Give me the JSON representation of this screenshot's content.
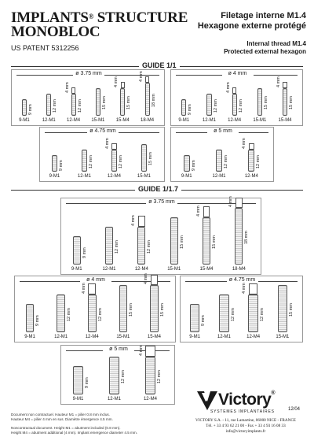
{
  "header": {
    "title_line1": "IMPLANTS",
    "trademark": "®",
    "title_line1b": " STRUCTURE",
    "title_line2": "MONOBLOC",
    "patent": "US PATENT 5312256",
    "fr_line1": "Filetage interne M1.4",
    "fr_line2": "Hexagone externe protégé",
    "en_line1": "Internal thread M1.4",
    "en_line2": "Protected external hexagon"
  },
  "guides": {
    "g1": "GUIDE 1/1",
    "g2": "GUIDE 1/1.7"
  },
  "footnotes": {
    "fr1": "Document non contractuel. Hauteur M1 = pilier 0.8 mm inclus.",
    "fr2": "Hauteur M4 = pilier 4 mm en sus. Diamètre émergence 4.5 mm.",
    "en1": "Noncontractual document. Height M1 = abutment included (0.8 mm).",
    "en2": "Height M4 = abutment additional (4 mm). Implant emergence diameter 4.5 mm."
  },
  "brand": {
    "name": "Victory",
    "reg": "®",
    "tagline": "SYSTEMES IMPLANTAIRES",
    "code": "12/04",
    "address": "VICTORY S.A. - 11, rue Lamartine, 06000 NICE - FRANCE",
    "phone": "Tél. + 33 4 93 62 21 00 - Fax + 33 4 93 16 08 33",
    "email": "info@victoryimplants.fr"
  },
  "panels": [
    {
      "diameter": "ø 3.75 mm",
      "labels": [
        "9-M1",
        "12-M1",
        "12-M4",
        "15-M1",
        "15-M4",
        "18-M4"
      ],
      "dims": [
        "9 mm",
        "12 mm",
        "4 mm",
        "12 mm",
        "15 mm",
        "4 mm",
        "15 mm",
        "4 mm",
        "18 mm"
      ]
    },
    {
      "diameter": "ø 4 mm",
      "labels": [
        "9-M1",
        "12-M1",
        "12-M4",
        "15-M1",
        "15-M4"
      ],
      "dims": [
        "9 mm",
        "12 mm",
        "4 mm",
        "12 mm",
        "15 mm",
        "4 mm",
        "15 mm"
      ]
    },
    {
      "diameter": "ø 4.75 mm",
      "labels": [
        "9-M1",
        "12-M1",
        "12-M4",
        "15-M1"
      ],
      "dims": [
        "9 mm",
        "12 mm",
        "4 mm",
        "12 mm",
        "15 mm"
      ]
    },
    {
      "diameter": "ø 5 mm",
      "labels": [
        "9-M1",
        "12-M1",
        "12-M4"
      ],
      "dims": [
        "9 mm",
        "12 mm",
        "4 mm",
        "12 mm"
      ]
    },
    {
      "diameter": "ø 3.75 mm",
      "labels": [
        "9-M1",
        "12-M1",
        "12-M4",
        "15-M1",
        "15-M4",
        "18-M4"
      ],
      "dims": [
        "9 mm",
        "12 mm",
        "4 mm",
        "12 mm",
        "15 mm",
        "4 mm",
        "15 mm",
        "4 mm",
        "18 mm"
      ]
    },
    {
      "diameter": "ø 4 mm",
      "labels": [
        "9-M1",
        "12-M1",
        "12-M4",
        "15-M1",
        "15-M4"
      ],
      "dims": [
        "9 mm",
        "12 mm",
        "4 mm",
        "12 mm",
        "15 mm",
        "4 mm",
        "15 mm"
      ]
    },
    {
      "diameter": "ø 4.75 mm",
      "labels": [
        "9-M1",
        "12-M1",
        "12-M4",
        "15-M1"
      ],
      "dims": [
        "9 mm",
        "12 mm",
        "4 mm",
        "12 mm",
        "15 mm"
      ]
    },
    {
      "diameter": "ø 5 mm",
      "labels": [
        "9-M1",
        "12-M1",
        "12-M4"
      ],
      "dims": [
        "9 mm",
        "12 mm",
        "4 mm",
        "12 mm"
      ]
    }
  ]
}
